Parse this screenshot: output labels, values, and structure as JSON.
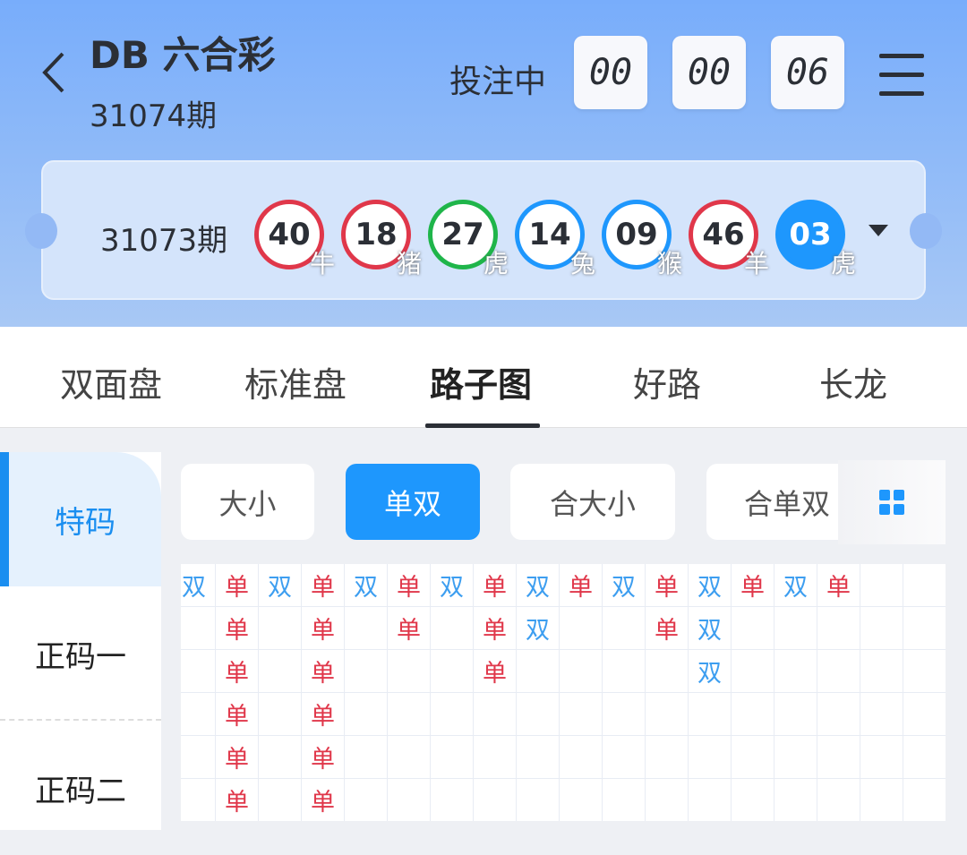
{
  "header": {
    "title": "DB 六合彩",
    "current_issue": "31074期",
    "status": "投注中",
    "countdown": [
      "00",
      "00",
      "06"
    ]
  },
  "last_draw": {
    "issue": "31073期",
    "balls": [
      {
        "number": "40",
        "zodiac": "牛",
        "color": "#e0374a"
      },
      {
        "number": "18",
        "zodiac": "猪",
        "color": "#e0374a"
      },
      {
        "number": "27",
        "zodiac": "虎",
        "color": "#1fb54a"
      },
      {
        "number": "14",
        "zodiac": "兔",
        "color": "#1e97fd"
      },
      {
        "number": "09",
        "zodiac": "猴",
        "color": "#1e97fd"
      },
      {
        "number": "46",
        "zodiac": "羊",
        "color": "#e0374a"
      },
      {
        "number": "03",
        "zodiac": "虎",
        "color": "#1e97fd",
        "filled": true
      }
    ]
  },
  "tabs": [
    {
      "label": "双面盘"
    },
    {
      "label": "标准盘"
    },
    {
      "label": "路子图",
      "active": true
    },
    {
      "label": "好路"
    },
    {
      "label": "长龙"
    }
  ],
  "sidebar": [
    {
      "label": "特码",
      "active": true
    },
    {
      "label": "正码一"
    },
    {
      "label": "正码二"
    }
  ],
  "filters": [
    {
      "label": "大小"
    },
    {
      "label": "单双",
      "active": true
    },
    {
      "label": "合大小"
    },
    {
      "label": "合单双"
    }
  ],
  "colors": {
    "odd": "#e0374a",
    "even": "#3d9ef0",
    "accent": "#1e97fd"
  },
  "road": {
    "columns": [
      [
        "双"
      ],
      [
        "单",
        "单",
        "单",
        "单",
        "单",
        "单"
      ],
      [
        "双"
      ],
      [
        "单",
        "单",
        "单",
        "单",
        "单",
        "单"
      ],
      [
        "双"
      ],
      [
        "单",
        "单"
      ],
      [
        "双"
      ],
      [
        "单",
        "单",
        "单"
      ],
      [
        "双",
        "双"
      ],
      [
        "单"
      ],
      [
        "双"
      ],
      [
        "单",
        "单"
      ],
      [
        "双",
        "双",
        "双"
      ],
      [
        "单"
      ],
      [
        "双"
      ],
      [
        "单"
      ],
      [],
      []
    ]
  }
}
